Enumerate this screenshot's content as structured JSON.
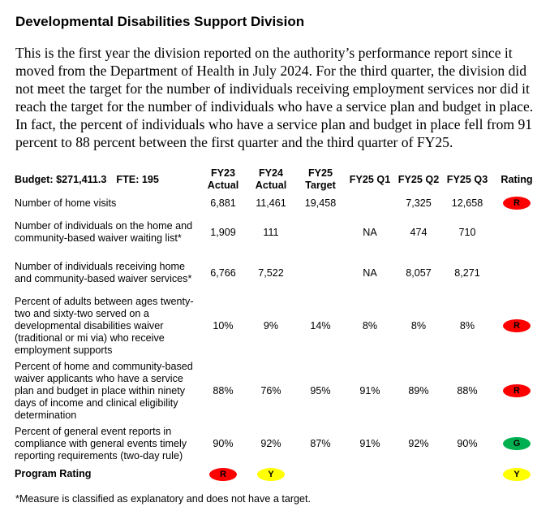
{
  "title": "Developmental Disabilities Support Division",
  "paragraph": "This is the first year the division reported on the authority’s performance report since it moved from the Department of Health in July 2024. For the third quarter, the division did not meet the target for the number of individuals receiving employment services nor did it reach the target for the number of individuals who have a service plan and budget in place. In fact, the percent of individuals who have a service plan and budget in place fell from 91 percent to 88 percent between the first quarter and the third quarter of FY25.",
  "table": {
    "budget": "Budget: $271,411.3",
    "fte": "FTE: 195",
    "headers": {
      "fy23_line1": "FY23",
      "fy23_line2": "Actual",
      "fy24_line1": "FY24",
      "fy24_line2": "Actual",
      "fy25_line1": "FY25",
      "fy25_line2": "Target",
      "q1": "FY25 Q1",
      "q2": "FY25 Q2",
      "q3": "FY25 Q3",
      "rating": "Rating"
    },
    "rows": [
      {
        "label": "Number of home visits",
        "fy23": "6,881",
        "fy24": "11,461",
        "target": "19,458",
        "q1": "",
        "q2": "7,325",
        "q3": "12,658",
        "rating": "R",
        "rating_color": "#ff0000"
      },
      {
        "label": "Number of individuals on the home and community-based waiver waiting list*",
        "fy23": "1,909",
        "fy24": "111",
        "target": "",
        "q1": "NA",
        "q2": "474",
        "q3": "710",
        "rating": "",
        "rating_color": ""
      },
      {
        "label": "Number of individuals receiving home and community-based waiver services*",
        "fy23": "6,766",
        "fy24": "7,522",
        "target": "",
        "q1": "NA",
        "q2": "8,057",
        "q3": "8,271",
        "rating": "",
        "rating_color": ""
      },
      {
        "label": "Percent of adults between ages twenty-two and sixty-two served on a developmental disabilities waiver (traditional or mi via) who receive employment supports",
        "fy23": "10%",
        "fy24": "9%",
        "target": "14%",
        "q1": "8%",
        "q2": "8%",
        "q3": "8%",
        "rating": "R",
        "rating_color": "#ff0000"
      },
      {
        "label": "Percent of home and community-based waiver applicants who have a service plan and budget in place within ninety days of income and clinical eligibility determination",
        "fy23": "88%",
        "fy24": "76%",
        "target": "95%",
        "q1": "91%",
        "q2": "89%",
        "q3": "88%",
        "rating": "R",
        "rating_color": "#ff0000"
      },
      {
        "label": "Percent of general event reports in compliance with general events timely reporting requirements (two-day rule)",
        "fy23": "90%",
        "fy24": "92%",
        "target": "87%",
        "q1": "91%",
        "q2": "92%",
        "q3": "90%",
        "rating": "G",
        "rating_color": "#00b050"
      }
    ],
    "program_rating": {
      "label": "Program Rating",
      "fy23": "R",
      "fy23_color": "#ff0000",
      "fy24": "Y",
      "fy24_color": "#ffff00",
      "rating": "Y",
      "rating_color": "#ffff00"
    }
  },
  "footnote": "*Measure is classified as explanatory and does not have a target."
}
